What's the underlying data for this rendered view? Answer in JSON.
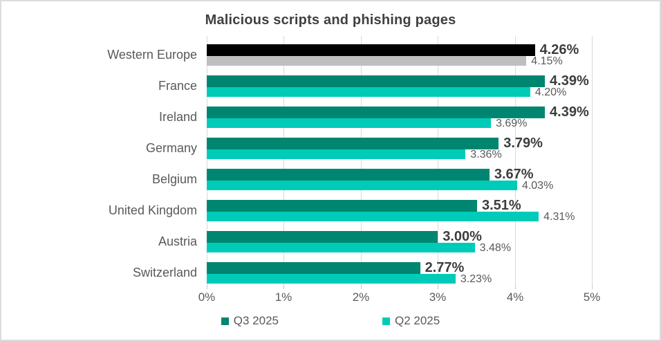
{
  "chart_data": {
    "type": "bar",
    "orientation": "horizontal",
    "title": "Malicious scripts and phishing pages",
    "categories": [
      "Western Europe",
      "France",
      "Ireland",
      "Germany",
      "Belgium",
      "United Kingdom",
      "Austria",
      "Switzerland"
    ],
    "series": [
      {
        "name": "Q3 2025",
        "color": "#008670",
        "values": [
          4.26,
          4.39,
          4.39,
          3.79,
          3.67,
          3.51,
          3.0,
          2.77
        ],
        "labels": [
          "4.26%",
          "4.39%",
          "4.39%",
          "3.79%",
          "3.67%",
          "3.51%",
          "3.00%",
          "2.77%"
        ]
      },
      {
        "name": "Q2 2025",
        "color": "#00CBB8",
        "values": [
          4.15,
          4.2,
          3.69,
          3.36,
          4.03,
          4.31,
          3.48,
          3.23
        ],
        "labels": [
          "4.15%",
          "4.20%",
          "3.69%",
          "3.36%",
          "4.03%",
          "4.31%",
          "3.48%",
          "3.23%"
        ]
      }
    ],
    "highlight": {
      "category": "Western Europe",
      "series_colors": [
        "#000000",
        "#BFBFBF"
      ]
    },
    "x_axis": {
      "min": 0,
      "max": 5,
      "tick_labels": [
        "0%",
        "1%",
        "2%",
        "3%",
        "4%",
        "5%"
      ]
    },
    "legend": {
      "position": "bottom",
      "entries": [
        "Q3 2025",
        "Q2 2025"
      ]
    },
    "grid": true,
    "colors": {
      "gridline": "#D9D9D9",
      "axis_text": "#595959",
      "title_text": "#404040",
      "value_label_primary": "#3D3D3D",
      "value_label_secondary": "#595959",
      "background": "#FFFFFF"
    }
  }
}
